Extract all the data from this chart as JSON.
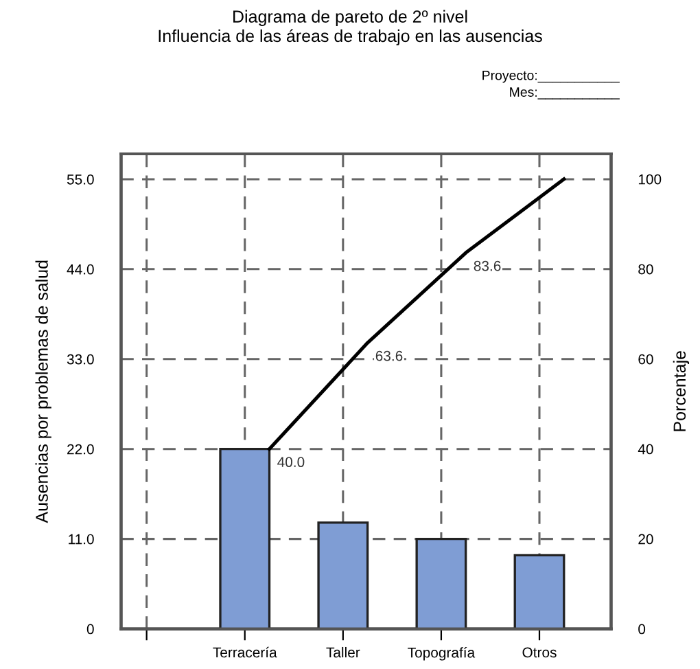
{
  "chart_data": {
    "type": "bar",
    "title": "Diagrama de pareto de 2º nivel\nInfluencia de las áreas de trabajo en las ausencias",
    "ylabel": "Ausencias por problemas de salud",
    "y2label": "Porcentaje",
    "categories": [
      null,
      "Terracería",
      "Taller",
      "Topografía",
      "Otros"
    ],
    "series": [
      {
        "color": "#7f9dd4",
        "values": [
          null,
          22,
          13,
          11,
          9
        ]
      },
      {
        "type": "line",
        "axis": "y2",
        "color": "#000000",
        "values": [
          null,
          40,
          63.6,
          83.6,
          100
        ],
        "value_labels": [
          null,
          "40.0",
          "63.6",
          "83.6",
          null
        ]
      }
    ],
    "ylim": [
      0,
      58.1
    ],
    "yticks": [
      0,
      {
        "value": 11,
        "label": "11.0"
      },
      {
        "value": 22,
        "label": "22.0"
      },
      {
        "value": 33,
        "label": "33.0"
      },
      {
        "value": 44,
        "label": "44.0"
      },
      {
        "value": 55,
        "label": "55.0"
      }
    ],
    "y2lim": [
      0,
      105.6
    ],
    "y2ticks": [
      0,
      20,
      40,
      60,
      80,
      100
    ],
    "grid": true,
    "line_style": "solid",
    "marker": "none",
    "annotations": [
      "Proyecto:___________",
      "Mes:___________"
    ]
  }
}
